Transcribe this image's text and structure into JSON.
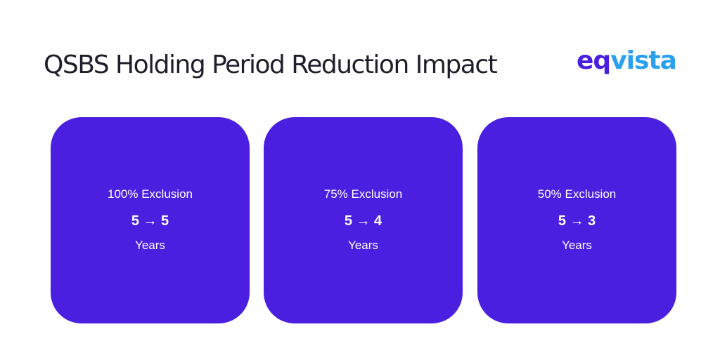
{
  "header": {
    "title": "QSBS Holding Period Reduction Impact",
    "logo_part1": "eq",
    "logo_part2": "vista"
  },
  "colors": {
    "card_background": "#4a1fe0",
    "logo_primary": "#4a1fe0",
    "logo_secondary": "#2aa0f0",
    "card_text": "#ffffff"
  },
  "cards": [
    {
      "label": "100% Exclusion",
      "value": "5 → 5",
      "unit": "Years"
    },
    {
      "label": "75% Exclusion",
      "value": "5 → 4",
      "unit": "Years"
    },
    {
      "label": "50% Exclusion",
      "value": "5 → 3",
      "unit": "Years"
    }
  ]
}
